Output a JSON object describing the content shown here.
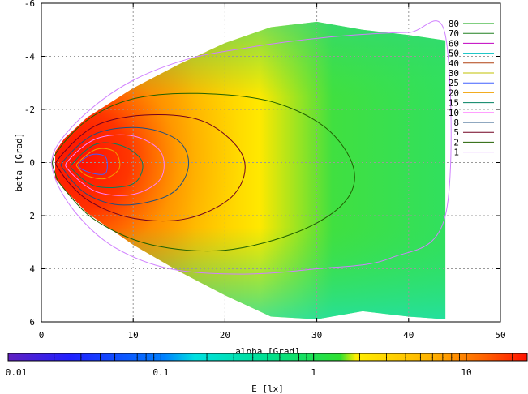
{
  "chart_data": {
    "type": "heatmap",
    "title": "",
    "xlabel": "alpha [Grad]",
    "ylabel": "beta [Grad]",
    "xlim": [
      0,
      50
    ],
    "ylim": [
      6,
      -6
    ],
    "x_ticks": [
      "0",
      "10",
      "20",
      "30",
      "40",
      "50"
    ],
    "y_ticks": [
      "-6",
      "-4",
      "-2",
      "0",
      "2",
      "4",
      "6"
    ],
    "grid": true,
    "grid_style": "dotted",
    "colorbar": {
      "label": "E [lx]",
      "scale": "log",
      "min": 0.01,
      "max": 25,
      "tick_labels": [
        "0.01",
        "0.1",
        "1",
        "10"
      ]
    },
    "contour_legend": {
      "placement": "top-right",
      "levels": [
        "80",
        "70",
        "60",
        "50",
        "40",
        "30",
        "25",
        "20",
        "15",
        "10",
        "8",
        "5",
        "2",
        "1"
      ],
      "colors": [
        "#00a000",
        "#208020",
        "#c000c0",
        "#00c0c0",
        "#b04010",
        "#c0c000",
        "#4060ff",
        "#f0a000",
        "#008060",
        "#ff80ff",
        "#205080",
        "#700020",
        "#206000",
        "#d080ff"
      ]
    },
    "beam_edge": {
      "x": [
        1.5,
        2.5,
        5,
        10,
        15,
        20,
        25,
        30,
        35,
        40,
        44
      ],
      "beta_top": [
        -0.4,
        -0.9,
        -1.7,
        -2.8,
        -3.7,
        -4.5,
        -5.1,
        -5.3,
        -5.0,
        -4.8,
        -4.6
      ],
      "beta_bottom": [
        0.6,
        1.0,
        1.9,
        3.1,
        4.1,
        5.0,
        5.8,
        5.9,
        5.6,
        5.8,
        5.9
      ]
    },
    "contours": [
      {
        "level": "1",
        "x": [
          1.5,
          5,
          10,
          16,
          22,
          28,
          34,
          40,
          44,
          44,
          38,
          30,
          22,
          14,
          8,
          4,
          1.5
        ],
        "beta": [
          -0.5,
          -1.9,
          -3.1,
          -3.9,
          -4.3,
          -4.6,
          -4.8,
          -4.9,
          -4.8,
          2.0,
          3.6,
          4.0,
          4.2,
          4.0,
          3.2,
          2.0,
          0.6
        ]
      },
      {
        "level": "2",
        "x": [
          1.5,
          5,
          10,
          17,
          25,
          31,
          34,
          33,
          28,
          20,
          12,
          6,
          2.5,
          1.5
        ],
        "beta": [
          -0.3,
          -1.6,
          -2.4,
          -2.6,
          -2.3,
          -1.3,
          0.2,
          1.5,
          2.6,
          3.3,
          3.1,
          2.2,
          1.0,
          0.4
        ]
      },
      {
        "level": "5",
        "x": [
          2,
          6,
          12,
          18,
          22,
          21,
          16,
          10,
          5,
          2
        ],
        "beta": [
          -0.2,
          -1.4,
          -1.8,
          -1.5,
          -0.2,
          1.2,
          2.1,
          2.1,
          1.4,
          0.3
        ]
      },
      {
        "level": "8",
        "x": [
          2.5,
          6,
          11,
          15,
          16,
          14,
          9,
          5,
          2.5
        ],
        "beta": [
          -0.1,
          -1.1,
          -1.3,
          -0.8,
          0.2,
          1.2,
          1.6,
          1.2,
          0.3
        ]
      },
      {
        "level": "10",
        "x": [
          3,
          6,
          10,
          13,
          13,
          10,
          6,
          3
        ],
        "beta": [
          -0.1,
          -0.9,
          -1.0,
          -0.4,
          0.6,
          1.2,
          1.1,
          0.3
        ]
      },
      {
        "level": "15",
        "x": [
          3.5,
          6,
          9,
          11,
          10,
          6,
          3.5
        ],
        "beta": [
          0.0,
          -0.7,
          -0.6,
          0.0,
          0.8,
          0.9,
          0.3
        ]
      },
      {
        "level": "20",
        "x": [
          4,
          6,
          8,
          8.5,
          7,
          5,
          4
        ],
        "beta": [
          0.0,
          -0.5,
          -0.4,
          0.2,
          0.6,
          0.5,
          0.2
        ]
      },
      {
        "level": "25",
        "x": [
          4.2,
          5.5,
          7,
          7,
          5.5,
          4.2
        ],
        "beta": [
          0.0,
          -0.3,
          -0.2,
          0.4,
          0.4,
          0.2
        ]
      }
    ]
  }
}
